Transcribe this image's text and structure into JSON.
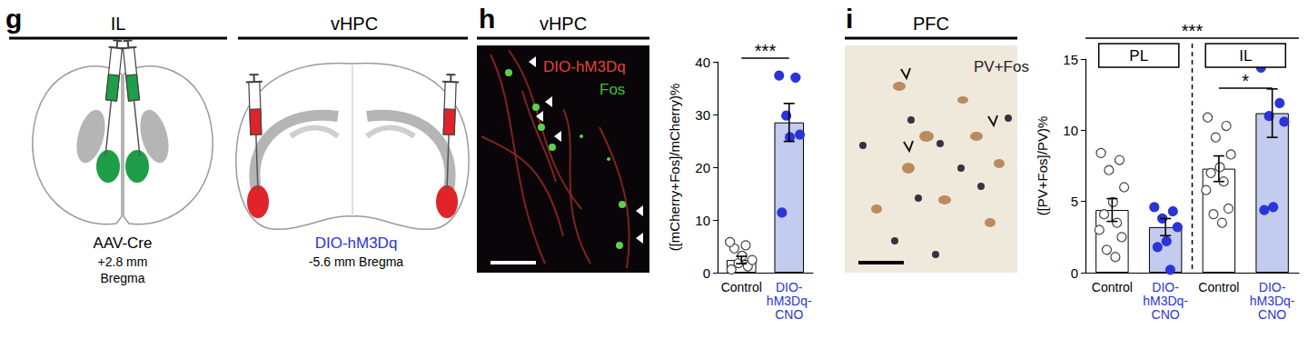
{
  "panels": [
    {
      "letter": "g",
      "headers": [
        "IL",
        "vHPC"
      ],
      "injections": [
        {
          "virus": "AAV-Cre",
          "coordinate": "+2.8 mm",
          "reference": "Bregma"
        },
        {
          "virus": "DIO-hM3Dq",
          "coordinate": "-5.6 mm Bregma"
        }
      ]
    },
    {
      "letter": "h",
      "header": "vHPC",
      "image_labels": [
        "DIO-hM3Dq",
        "Fos"
      ]
    },
    {
      "letter": "i",
      "header": "PFC",
      "image_labels": [
        "PV+Fos"
      ]
    }
  ],
  "chart_data": [
    {
      "type": "bar",
      "y_label": "([mCherry+Fos]/mCherry)%",
      "categories": [
        "Control",
        "DIO-hM3Dq-CNO"
      ],
      "colors": [
        "#ffffff",
        "#c3cbee"
      ],
      "values": [
        2.4,
        28.5
      ],
      "errors": [
        0.7,
        3.6
      ],
      "points": [
        [
          0.6,
          1.2,
          1.8,
          2.4,
          3.2,
          4.6,
          5.2,
          5.8
        ],
        [
          37.4,
          37.0,
          29.8,
          26.2,
          25.7,
          11.4
        ]
      ],
      "ylim": [
        0,
        40
      ],
      "yticks": [
        0,
        10,
        20,
        30,
        40
      ],
      "grid": false,
      "annotations": [
        {
          "text": "***",
          "categories": [
            "Control",
            "DIO-hM3Dq-CNO"
          ]
        }
      ]
    },
    {
      "type": "bar",
      "y_label": "([PV+Fos]/PV)%",
      "categories": [
        "Control",
        "DIO-hM3Dq-CNO"
      ],
      "colors": [
        "#ffffff",
        "#c3cbee"
      ],
      "groups": [
        {
          "label": "PL",
          "values": [
            4.4,
            3.2
          ],
          "errors": [
            0.8,
            0.6
          ],
          "points": [
            [
              8.4,
              8.0,
              7.2,
              6.0,
              5.0,
              4.1,
              3.5,
              3.0,
              2.5,
              1.7,
              1.1
            ],
            [
              4.6,
              4.4,
              3.8,
              3.2,
              2.3,
              1.8,
              0.2
            ]
          ]
        },
        {
          "label": "IL",
          "values": [
            7.3,
            11.2
          ],
          "errors": [
            0.9,
            1.7
          ],
          "points": [
            [
              10.9,
              10.4,
              9.5,
              8.3,
              7.5,
              7.0,
              6.4,
              5.8,
              4.5,
              4.2,
              3.5
            ],
            [
              14.4,
              12.0,
              11.0,
              10.6,
              4.7,
              4.4
            ]
          ]
        }
      ],
      "ylim": [
        0,
        15
      ],
      "yticks": [
        0,
        5,
        10,
        15
      ],
      "grid": false,
      "annotations": [
        {
          "text": "***",
          "groups": [
            "PL",
            "IL"
          ]
        },
        {
          "text": "*",
          "groups": [
            "IL"
          ]
        }
      ]
    }
  ]
}
